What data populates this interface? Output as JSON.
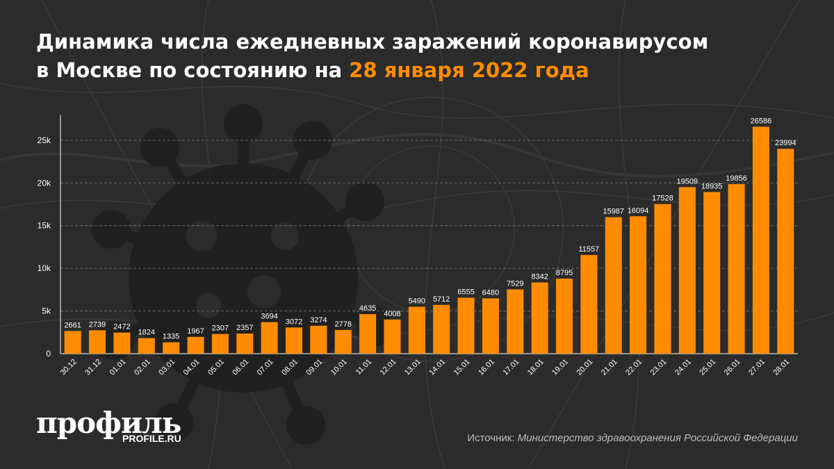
{
  "title": {
    "line1": "Динамика числа ежедневных заражений коронавирусом",
    "line2_prefix": "в Москве по состоянию на ",
    "line2_highlight": "28 января 2022 года"
  },
  "logo": {
    "main": "профиль",
    "sub": "PROFILE.RU"
  },
  "source": {
    "label": "Источник:",
    "text": "Министерство здравоохранения Российской Федерации"
  },
  "colors": {
    "background": "#2b2b2b",
    "bar": "#ff8c00",
    "highlight": "#ff8c00",
    "text": "#ffffff"
  },
  "chart_data": {
    "type": "bar",
    "categories": [
      "30.12",
      "31.12",
      "01.01",
      "02.01",
      "03.01",
      "04.01",
      "05.01",
      "06.01",
      "07.01",
      "08.01",
      "09.01",
      "10.01",
      "11.01",
      "12.01",
      "13.01",
      "14.01",
      "15.01",
      "16.01",
      "17.01",
      "18.01",
      "19.01",
      "20.01",
      "21.01",
      "22.01",
      "23.01",
      "24.01",
      "25.01",
      "26.01",
      "27.01",
      "28.01"
    ],
    "values": [
      2661,
      2739,
      2472,
      1824,
      1335,
      1967,
      2307,
      2357,
      3694,
      3072,
      3274,
      2778,
      4635,
      4008,
      5490,
      5712,
      6555,
      6480,
      7529,
      8342,
      8795,
      11557,
      15987,
      16094,
      17528,
      19509,
      18935,
      19856,
      26586,
      23994
    ],
    "yticks": [
      0,
      5000,
      10000,
      15000,
      20000,
      25000
    ],
    "ytick_labels": [
      "0",
      "5k",
      "10k",
      "15k",
      "20k",
      "25k"
    ],
    "ylim": [
      0,
      28000
    ],
    "grid": true,
    "data_labels": true
  }
}
